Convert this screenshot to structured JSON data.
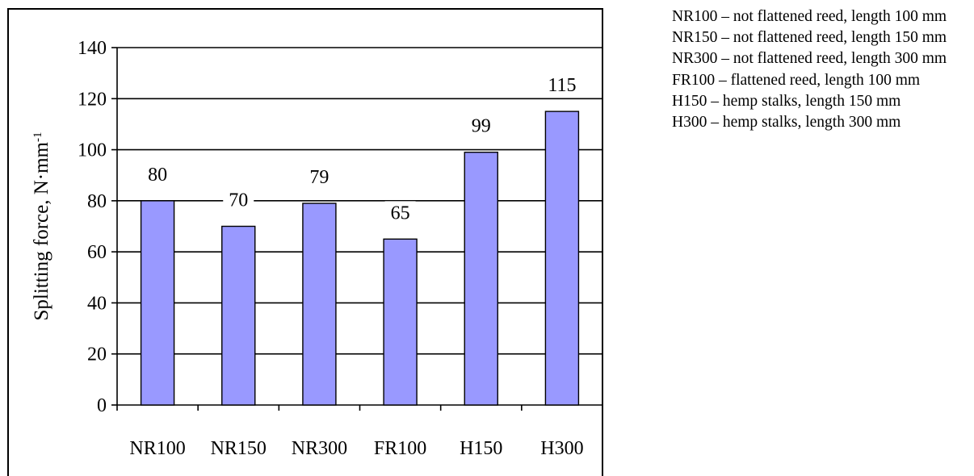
{
  "chart_data": {
    "type": "bar",
    "categories": [
      "NR100",
      "NR150",
      "NR300",
      "FR100",
      "H150",
      "H300"
    ],
    "values": [
      80,
      70,
      79,
      65,
      99,
      115
    ],
    "data_labels": [
      "80",
      "70",
      "79",
      "65",
      "99",
      "115"
    ],
    "title": "",
    "xlabel": "",
    "ylabel": "Splitting force, N·mm",
    "ylabel_superscript": "-1",
    "ylim": [
      0,
      140
    ],
    "yticks": [
      "0",
      "20",
      "40",
      "60",
      "80",
      "100",
      "120",
      "140"
    ],
    "grid": true,
    "bar_color": "#9999ff",
    "bar_edge_color": "#000000"
  },
  "legend": {
    "entries": [
      "NR100 – not flattened reed, length 100 mm",
      "NR150 – not flattened reed, length 150 mm",
      "NR300 – not flattened reed, length 300 mm",
      "FR100 – flattened reed, length 100 mm",
      "H150 – hemp stalks, length 150 mm",
      "H300 – hemp stalks, length 300 mm"
    ]
  }
}
